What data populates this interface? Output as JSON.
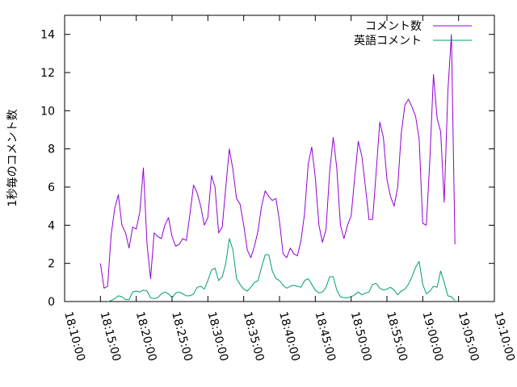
{
  "chart_data": {
    "type": "line",
    "ylabel": "1秒毎のコメント数",
    "xlabel": "",
    "title": "",
    "xlim": [
      "18:10:00",
      "19:10:00"
    ],
    "ylim": [
      0,
      15
    ],
    "x_ticks": [
      "18:10:00",
      "18:15:00",
      "18:20:00",
      "18:25:00",
      "18:30:00",
      "18:35:00",
      "18:40:00",
      "18:45:00",
      "18:50:00",
      "18:55:00",
      "19:00:00",
      "19:05:00",
      "19:10:00"
    ],
    "y_ticks": [
      0,
      2,
      4,
      6,
      8,
      10,
      12,
      14
    ],
    "legend_position": "top-right",
    "grid": false,
    "series": [
      {
        "name": "コメント数",
        "color": "#9400d3",
        "points": [
          [
            "18:15:00",
            2.0
          ],
          [
            "18:15:30",
            0.7
          ],
          [
            "18:16:00",
            0.8
          ],
          [
            "18:16:30",
            3.5
          ],
          [
            "18:17:00",
            4.9
          ],
          [
            "18:17:30",
            5.6
          ],
          [
            "18:18:00",
            4.0
          ],
          [
            "18:18:30",
            3.6
          ],
          [
            "18:19:00",
            2.8
          ],
          [
            "18:19:30",
            3.9
          ],
          [
            "18:20:00",
            3.8
          ],
          [
            "18:20:30",
            4.7
          ],
          [
            "18:21:00",
            7.0
          ],
          [
            "18:21:30",
            3.0
          ],
          [
            "18:22:00",
            1.2
          ],
          [
            "18:22:30",
            3.6
          ],
          [
            "18:23:00",
            3.4
          ],
          [
            "18:23:30",
            3.3
          ],
          [
            "18:24:00",
            4.0
          ],
          [
            "18:24:30",
            4.4
          ],
          [
            "18:25:00",
            3.4
          ],
          [
            "18:25:30",
            2.9
          ],
          [
            "18:26:00",
            3.0
          ],
          [
            "18:26:30",
            3.3
          ],
          [
            "18:27:00",
            3.2
          ],
          [
            "18:27:30",
            4.6
          ],
          [
            "18:28:00",
            6.1
          ],
          [
            "18:28:30",
            5.7
          ],
          [
            "18:29:00",
            5.0
          ],
          [
            "18:29:30",
            4.0
          ],
          [
            "18:30:00",
            4.4
          ],
          [
            "18:30:30",
            6.6
          ],
          [
            "18:31:00",
            6.0
          ],
          [
            "18:31:30",
            3.6
          ],
          [
            "18:32:00",
            3.9
          ],
          [
            "18:32:30",
            6.0
          ],
          [
            "18:33:00",
            8.0
          ],
          [
            "18:33:30",
            6.9
          ],
          [
            "18:34:00",
            5.4
          ],
          [
            "18:34:30",
            5.1
          ],
          [
            "18:35:00",
            4.0
          ],
          [
            "18:35:30",
            2.7
          ],
          [
            "18:36:00",
            2.3
          ],
          [
            "18:36:30",
            2.9
          ],
          [
            "18:37:00",
            3.7
          ],
          [
            "18:37:30",
            5.0
          ],
          [
            "18:38:00",
            5.8
          ],
          [
            "18:38:30",
            5.5
          ],
          [
            "18:39:00",
            5.3
          ],
          [
            "18:39:30",
            5.4
          ],
          [
            "18:40:00",
            4.2
          ],
          [
            "18:40:30",
            2.5
          ],
          [
            "18:41:00",
            2.3
          ],
          [
            "18:41:30",
            2.8
          ],
          [
            "18:42:00",
            2.5
          ],
          [
            "18:42:30",
            2.4
          ],
          [
            "18:43:00",
            3.2
          ],
          [
            "18:43:30",
            4.6
          ],
          [
            "18:44:00",
            7.2
          ],
          [
            "18:44:30",
            8.1
          ],
          [
            "18:45:00",
            6.5
          ],
          [
            "18:45:30",
            4.0
          ],
          [
            "18:46:00",
            3.1
          ],
          [
            "18:46:30",
            3.8
          ],
          [
            "18:47:00",
            6.8
          ],
          [
            "18:47:30",
            8.6
          ],
          [
            "18:48:00",
            7.0
          ],
          [
            "18:48:30",
            4.0
          ],
          [
            "18:49:00",
            3.3
          ],
          [
            "18:49:30",
            4.0
          ],
          [
            "18:50:00",
            4.5
          ],
          [
            "18:50:30",
            6.5
          ],
          [
            "18:51:00",
            8.4
          ],
          [
            "18:51:30",
            7.6
          ],
          [
            "18:52:00",
            6.0
          ],
          [
            "18:52:30",
            4.3
          ],
          [
            "18:53:00",
            4.3
          ],
          [
            "18:53:30",
            6.8
          ],
          [
            "18:54:00",
            9.4
          ],
          [
            "18:54:30",
            8.6
          ],
          [
            "18:55:00",
            6.4
          ],
          [
            "18:55:30",
            5.5
          ],
          [
            "18:56:00",
            5.0
          ],
          [
            "18:56:30",
            6.0
          ],
          [
            "18:57:00",
            8.8
          ],
          [
            "18:57:30",
            10.3
          ],
          [
            "18:58:00",
            10.6
          ],
          [
            "18:58:30",
            10.2
          ],
          [
            "18:59:00",
            9.7
          ],
          [
            "18:59:30",
            8.5
          ],
          [
            "19:00:00",
            4.1
          ],
          [
            "19:00:30",
            4.0
          ],
          [
            "19:01:00",
            7.5
          ],
          [
            "19:01:30",
            11.9
          ],
          [
            "19:02:00",
            9.6
          ],
          [
            "19:02:30",
            8.9
          ],
          [
            "19:03:00",
            5.2
          ],
          [
            "19:03:30",
            11.0
          ],
          [
            "19:04:00",
            14.0
          ],
          [
            "19:04:30",
            3.0
          ]
        ]
      },
      {
        "name": "英語コメント",
        "color": "#009e73",
        "points": [
          [
            "18:16:00",
            0.0
          ],
          [
            "18:16:30",
            0.05
          ],
          [
            "18:17:00",
            0.15
          ],
          [
            "18:17:30",
            0.3
          ],
          [
            "18:18:00",
            0.25
          ],
          [
            "18:18:30",
            0.1
          ],
          [
            "18:19:00",
            0.1
          ],
          [
            "18:19:30",
            0.5
          ],
          [
            "18:20:00",
            0.55
          ],
          [
            "18:20:30",
            0.5
          ],
          [
            "18:21:00",
            0.6
          ],
          [
            "18:21:30",
            0.55
          ],
          [
            "18:22:00",
            0.2
          ],
          [
            "18:22:30",
            0.15
          ],
          [
            "18:23:00",
            0.2
          ],
          [
            "18:23:30",
            0.4
          ],
          [
            "18:24:00",
            0.5
          ],
          [
            "18:24:30",
            0.4
          ],
          [
            "18:25:00",
            0.2
          ],
          [
            "18:25:30",
            0.45
          ],
          [
            "18:26:00",
            0.5
          ],
          [
            "18:26:30",
            0.4
          ],
          [
            "18:27:00",
            0.3
          ],
          [
            "18:27:30",
            0.3
          ],
          [
            "18:28:00",
            0.4
          ],
          [
            "18:28:30",
            0.75
          ],
          [
            "18:29:00",
            0.8
          ],
          [
            "18:29:30",
            0.65
          ],
          [
            "18:30:00",
            1.1
          ],
          [
            "18:30:30",
            1.65
          ],
          [
            "18:31:00",
            1.75
          ],
          [
            "18:31:30",
            1.1
          ],
          [
            "18:32:00",
            1.3
          ],
          [
            "18:32:30",
            2.0
          ],
          [
            "18:33:00",
            3.3
          ],
          [
            "18:33:30",
            2.7
          ],
          [
            "18:34:00",
            1.2
          ],
          [
            "18:34:30",
            0.9
          ],
          [
            "18:35:00",
            0.65
          ],
          [
            "18:35:30",
            0.55
          ],
          [
            "18:36:00",
            0.75
          ],
          [
            "18:36:30",
            1.0
          ],
          [
            "18:37:00",
            1.1
          ],
          [
            "18:37:30",
            1.8
          ],
          [
            "18:38:00",
            2.45
          ],
          [
            "18:38:30",
            2.45
          ],
          [
            "18:39:00",
            1.6
          ],
          [
            "18:39:30",
            1.2
          ],
          [
            "18:40:00",
            1.1
          ],
          [
            "18:40:30",
            0.85
          ],
          [
            "18:41:00",
            0.7
          ],
          [
            "18:41:30",
            0.8
          ],
          [
            "18:42:00",
            0.85
          ],
          [
            "18:42:30",
            0.8
          ],
          [
            "18:43:00",
            0.75
          ],
          [
            "18:43:30",
            1.1
          ],
          [
            "18:44:00",
            1.2
          ],
          [
            "18:44:30",
            0.9
          ],
          [
            "18:45:00",
            0.6
          ],
          [
            "18:45:30",
            0.45
          ],
          [
            "18:46:00",
            0.5
          ],
          [
            "18:46:30",
            0.75
          ],
          [
            "18:47:00",
            1.3
          ],
          [
            "18:47:30",
            1.3
          ],
          [
            "18:48:00",
            0.6
          ],
          [
            "18:48:30",
            0.25
          ],
          [
            "18:49:00",
            0.2
          ],
          [
            "18:49:30",
            0.2
          ],
          [
            "18:50:00",
            0.25
          ],
          [
            "18:50:30",
            0.35
          ],
          [
            "18:51:00",
            0.5
          ],
          [
            "18:51:30",
            0.35
          ],
          [
            "18:52:00",
            0.45
          ],
          [
            "18:52:30",
            0.5
          ],
          [
            "18:53:00",
            0.9
          ],
          [
            "18:53:30",
            0.95
          ],
          [
            "18:54:00",
            0.7
          ],
          [
            "18:54:30",
            0.6
          ],
          [
            "18:55:00",
            0.65
          ],
          [
            "18:55:30",
            0.75
          ],
          [
            "18:56:00",
            0.6
          ],
          [
            "18:56:30",
            0.35
          ],
          [
            "18:57:00",
            0.55
          ],
          [
            "18:57:30",
            0.65
          ],
          [
            "18:58:00",
            0.9
          ],
          [
            "18:58:30",
            1.3
          ],
          [
            "18:59:00",
            1.8
          ],
          [
            "18:59:30",
            2.1
          ],
          [
            "19:00:00",
            0.9
          ],
          [
            "19:00:30",
            0.4
          ],
          [
            "19:01:00",
            0.55
          ],
          [
            "19:01:30",
            0.8
          ],
          [
            "19:02:00",
            0.75
          ],
          [
            "19:02:30",
            1.6
          ],
          [
            "19:03:00",
            1.0
          ],
          [
            "19:03:30",
            0.3
          ],
          [
            "19:04:00",
            0.25
          ],
          [
            "19:04:30",
            0.05
          ]
        ]
      }
    ]
  }
}
